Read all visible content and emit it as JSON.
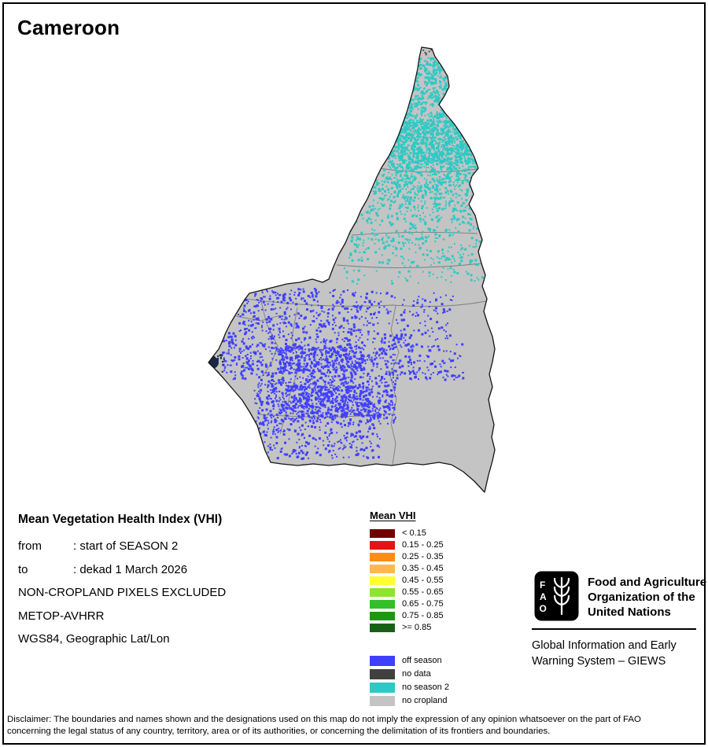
{
  "page": {
    "title": "Cameroon"
  },
  "info": {
    "heading": "Mean Vegetation Health Index (VHI)",
    "rows": [
      {
        "label": "from",
        "text": ": start of SEASON 2"
      },
      {
        "label": "to",
        "text": ": dekad 1 March 2026"
      },
      {
        "label": "",
        "text": "NON-CROPLAND PIXELS EXCLUDED"
      },
      {
        "label": "",
        "text": "METOP-AVHRR"
      },
      {
        "label": "",
        "text": "WGS84, Geographic Lat/Lon"
      }
    ]
  },
  "legend": {
    "header": "Mean VHI",
    "vhi_classes": [
      {
        "label": "< 0.15",
        "color": "#730000"
      },
      {
        "label": "0.15 - 0.25",
        "color": "#e31414"
      },
      {
        "label": "0.25 - 0.35",
        "color": "#ff8c1a"
      },
      {
        "label": "0.35 - 0.45",
        "color": "#ffb84d"
      },
      {
        "label": "0.45 - 0.55",
        "color": "#ffff33"
      },
      {
        "label": "0.55 - 0.65",
        "color": "#8ce62e"
      },
      {
        "label": "0.65 - 0.75",
        "color": "#33bf26"
      },
      {
        "label": "0.75 - 0.85",
        "color": "#1f9613"
      },
      {
        "label": ">= 0.85",
        "color": "#176117"
      }
    ],
    "categories": [
      {
        "label": "off season",
        "color": "#3f3fff"
      },
      {
        "label": "no data",
        "color": "#404040"
      },
      {
        "label": "no season 2",
        "color": "#2ec9c4"
      },
      {
        "label": "no cropland",
        "color": "#c4c4c4"
      }
    ]
  },
  "map": {
    "country": "Cameroon",
    "colors": {
      "no_cropland": "#c4c4c4",
      "no_season_2": "#2ec9c4",
      "off_season": "#3f3fff",
      "no_data": "#404040",
      "outline": "#151515",
      "admin_boundary": "#7d7d7d"
    }
  },
  "footer": {
    "org_lines": [
      "Food and Agriculture",
      "Organization of the",
      "United Nations"
    ],
    "giews_lines": [
      "Global Information and Early",
      "Warning System – GIEWS"
    ],
    "disclaimer_lines": [
      "Disclaimer: The boundaries and names shown and the designations used on this map do not imply the expression of any opinion whatsoever on the part of FAO",
      "concerning the legal status of any country, territory, area or of its authorities, or concerning the delimitation of its frontiers and boundaries."
    ]
  }
}
